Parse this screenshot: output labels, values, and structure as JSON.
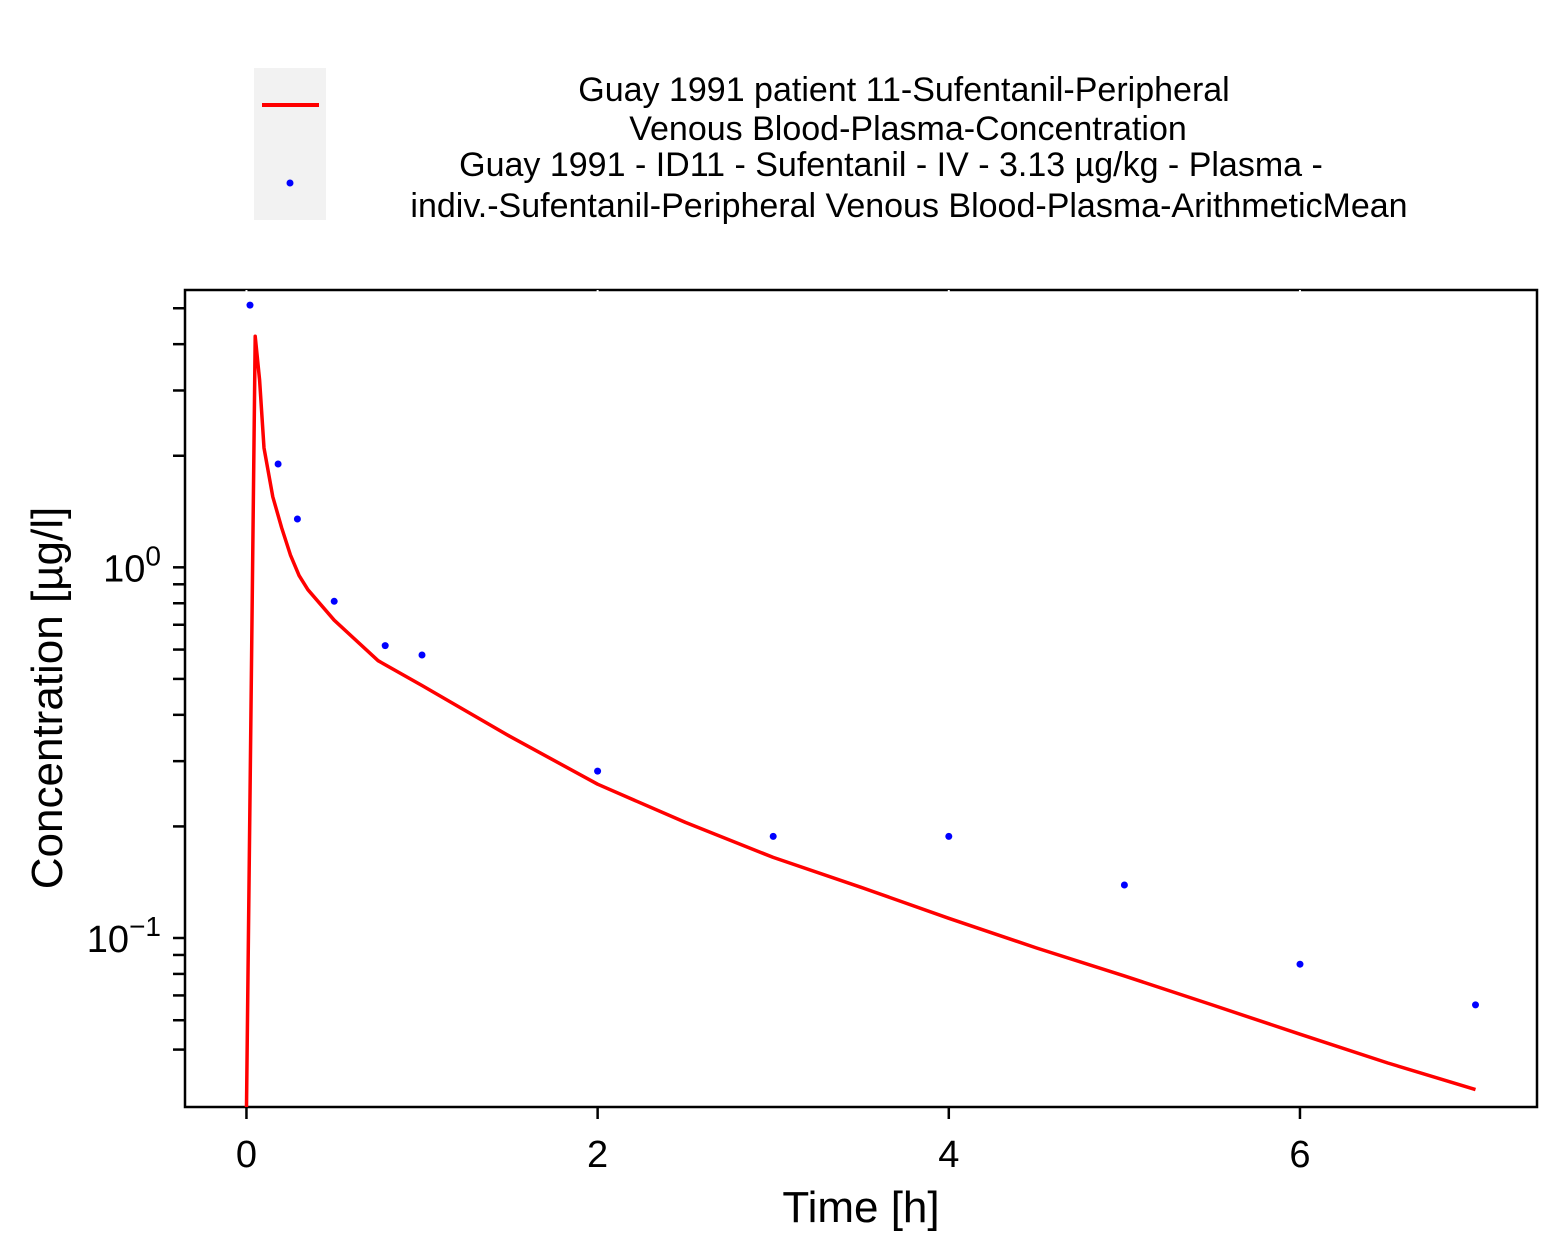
{
  "chart_data": {
    "type": "line",
    "xlabel": "Time [h]",
    "ylabel": "Concentration [µg/l]",
    "yscale": "log",
    "xlim": [
      -0.35,
      7.35
    ],
    "ylim": [
      0.035,
      5.6
    ],
    "xticks": [
      0,
      2,
      4,
      6
    ],
    "xtick_labels": [
      "0",
      "2",
      "4",
      "6"
    ],
    "yticks": [
      0.1,
      1
    ],
    "ytick_labels": [
      {
        "base": "10",
        "exp": "−1"
      },
      {
        "base": "10",
        "exp": "0"
      }
    ],
    "yminor": [
      0.05,
      0.06,
      0.07,
      0.08,
      0.09,
      0.2,
      0.3,
      0.4,
      0.5,
      0.6,
      0.7,
      0.8,
      0.9,
      2,
      3,
      4,
      5
    ],
    "legend_position": "top",
    "series": [
      {
        "name_lines": [
          "Guay 1991 patient 11-Sufentanil-Peripheral",
          "Venous Blood-Plasma-Concentration"
        ],
        "style": "line",
        "color": "#ff0000",
        "x": [
          0.0,
          0.05,
          0.075,
          0.1,
          0.15,
          0.2,
          0.25,
          0.3,
          0.35,
          0.5,
          0.75,
          1.0,
          1.5,
          2.0,
          2.5,
          3.0,
          3.5,
          4.0,
          4.5,
          5.0,
          5.5,
          6.0,
          6.5,
          7.0
        ],
        "y": [
          0.035,
          4.2,
          3.2,
          2.1,
          1.55,
          1.28,
          1.08,
          0.95,
          0.87,
          0.72,
          0.56,
          0.48,
          0.35,
          0.26,
          0.205,
          0.165,
          0.137,
          0.113,
          0.094,
          0.079,
          0.066,
          0.055,
          0.046,
          0.039
        ]
      },
      {
        "name_lines": [
          "Guay 1991 - ID11 - Sufentanil - IV - 3.13 µg/kg - Plasma -",
          "indiv.-Sufentanil-Peripheral Venous Blood-Plasma-ArithmeticMean"
        ],
        "style": "points",
        "color": "#0000ff",
        "x": [
          0.02,
          0.18,
          0.29,
          0.5,
          0.79,
          1.0,
          2.0,
          3.0,
          4.0,
          5.0,
          6.0,
          7.0
        ],
        "y": [
          5.1,
          1.9,
          1.35,
          0.81,
          0.615,
          0.58,
          0.282,
          0.188,
          0.188,
          0.139,
          0.085,
          0.066
        ]
      }
    ]
  }
}
